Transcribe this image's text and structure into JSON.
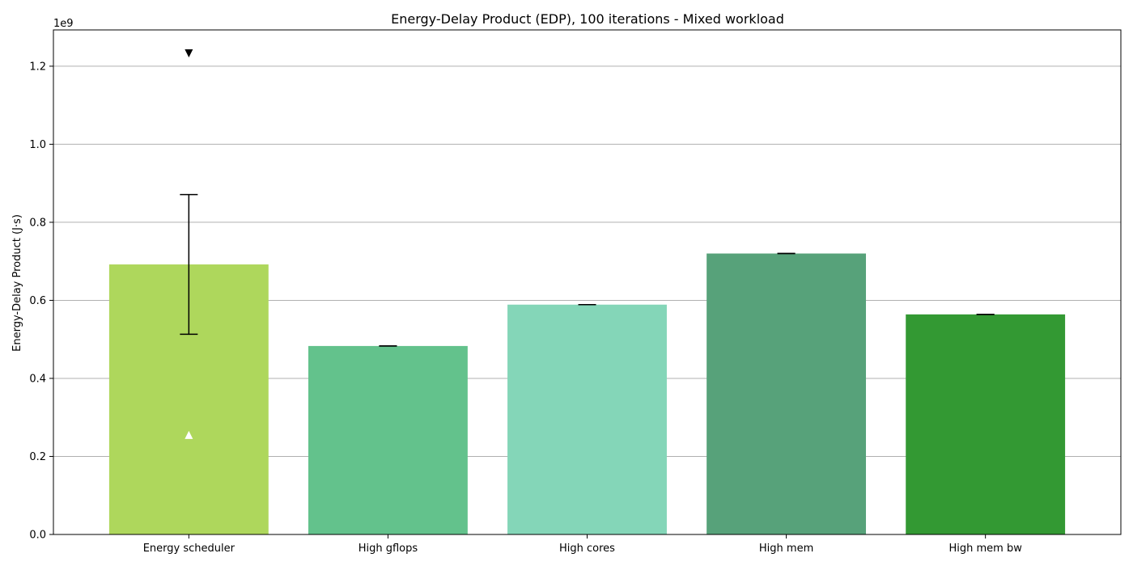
{
  "chart_data": {
    "type": "bar",
    "title": "Energy-Delay Product (EDP), 100 iterations - Mixed workload",
    "xlabel": "",
    "ylabel": "Energy-Delay Product (J·s)",
    "y_offset_label": "1e9",
    "y_scale": 1000000000,
    "ylim": [
      0,
      1.293
    ],
    "yticks": [
      0.0,
      0.2,
      0.4,
      0.6,
      0.8,
      1.0,
      1.2
    ],
    "ytick_labels": [
      "0.0",
      "0.2",
      "0.4",
      "0.6",
      "0.8",
      "1.0",
      "1.2"
    ],
    "grid": "horizontal",
    "categories": [
      "Energy scheduler",
      "High gflops",
      "High cores",
      "High mem",
      "High mem bw"
    ],
    "values": [
      0.692,
      0.483,
      0.589,
      0.72,
      0.564
    ],
    "error_low": [
      0.513,
      0.483,
      0.589,
      0.72,
      0.564
    ],
    "error_high": [
      0.871,
      0.483,
      0.589,
      0.72,
      0.564
    ],
    "colors": [
      "#aed75c",
      "#63c28c",
      "#84d6b8",
      "#57a27a",
      "#339933"
    ],
    "markers": [
      {
        "category": "Energy scheduler",
        "value": 1.233,
        "symbol": "triangle-down",
        "color": "#000000"
      },
      {
        "category": "Energy scheduler",
        "value": 0.255,
        "symbol": "triangle-up",
        "color": "#ffffff"
      }
    ]
  }
}
